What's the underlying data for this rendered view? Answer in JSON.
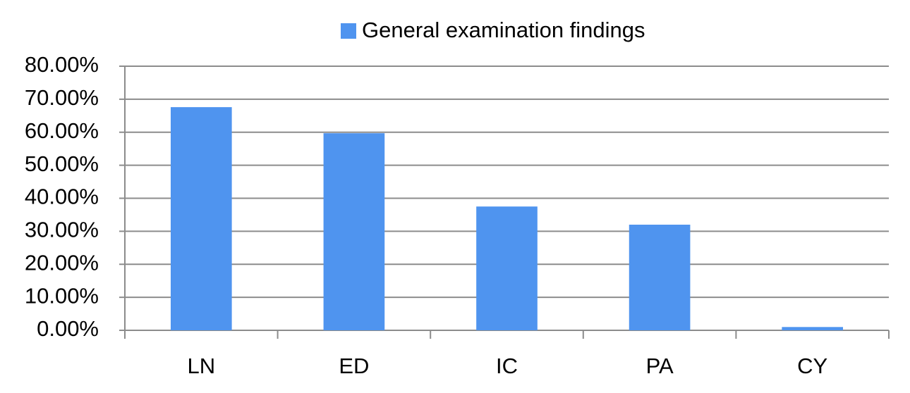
{
  "chart_data": {
    "type": "bar",
    "categories": [
      "LN",
      "ED",
      "IC",
      "PA",
      "CY"
    ],
    "series": [
      {
        "name": "General examination findings",
        "color": "#4f94ef",
        "values": [
          67.6,
          59.7,
          37.5,
          32.0,
          1.0
        ]
      }
    ],
    "ylim": [
      0,
      80
    ],
    "yticks": [
      {
        "value": 0,
        "label": "0.00%"
      },
      {
        "value": 10,
        "label": "10.00%"
      },
      {
        "value": 20,
        "label": "20.00%"
      },
      {
        "value": 30,
        "label": "30.00%"
      },
      {
        "value": 40,
        "label": "40.00%"
      },
      {
        "value": 50,
        "label": "50.00%"
      },
      {
        "value": 60,
        "label": "60.00%"
      },
      {
        "value": 70,
        "label": "70.00%"
      },
      {
        "value": 80,
        "label": "80.00%"
      }
    ],
    "grid": true,
    "legend": "top"
  }
}
